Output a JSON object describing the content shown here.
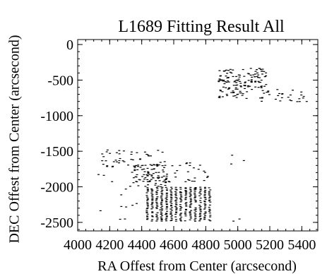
{
  "chart_data": {
    "type": "scatter",
    "title": "L1689 Fitting Result All",
    "xlabel": "RA Offest from Center (arcsecond)",
    "ylabel": "DEC Offest from Center (arcsecond)",
    "xlim": [
      4000,
      5500
    ],
    "ylim": [
      -2620,
      70
    ],
    "xticks": [
      4000,
      4200,
      4400,
      4600,
      4800,
      5000,
      5200,
      5400
    ],
    "xtick_labels": [
      "4000",
      "4200",
      "4400",
      "4600",
      "4800",
      "5000",
      "5200",
      "5400"
    ],
    "yticks": [
      0,
      -500,
      -1000,
      -1500,
      -2000,
      -2500
    ],
    "ytick_labels": [
      "0",
      "-500",
      "-1000",
      "-1500",
      "-2000",
      "-2500"
    ],
    "grid": false,
    "legend": "none",
    "marker_color": "#000000",
    "clusters": [
      {
        "name": "",
        "x_range": [
          4880,
          5060
        ],
        "y_range": [
          -760,
          -340
        ],
        "count": 90,
        "style": "rect"
      },
      {
        "name": "",
        "x_range": [
          5060,
          5180
        ],
        "y_range": [
          -650,
          -330
        ],
        "count": 50,
        "style": "rect"
      },
      {
        "name": "",
        "x_range": [
          5140,
          5440
        ],
        "y_range": [
          -810,
          -630
        ],
        "count": 30,
        "style": "rect"
      },
      {
        "name": "",
        "x_range": [
          4420,
          4840
        ],
        "y_range": [
          -2490,
          -2000
        ],
        "count": 360,
        "style": "grid"
      },
      {
        "name": "",
        "x_range": [
          4340,
          4560
        ],
        "y_range": [
          -2000,
          -1690
        ],
        "count": 90,
        "style": "rect"
      },
      {
        "name": "",
        "x_range": [
          4150,
          4560
        ],
        "y_range": [
          -1720,
          -1480
        ],
        "count": 45,
        "style": "rect"
      },
      {
        "name": "",
        "x_range": [
          4560,
          4820
        ],
        "y_range": [
          -2090,
          -1660
        ],
        "count": 30,
        "style": "rect"
      },
      {
        "name": "",
        "x_range": [
          4100,
          4600
        ],
        "y_range": [
          -2480,
          -1600
        ],
        "count": 20,
        "style": "rect"
      },
      {
        "name": "",
        "x_range": [
          4950,
          5060
        ],
        "y_range": [
          -1730,
          -1490
        ],
        "count": 3,
        "style": "rect"
      },
      {
        "name": "",
        "x_range": [
          4940,
          5060
        ],
        "y_range": [
          -2500,
          -2450
        ],
        "count": 2,
        "style": "rect"
      }
    ]
  }
}
